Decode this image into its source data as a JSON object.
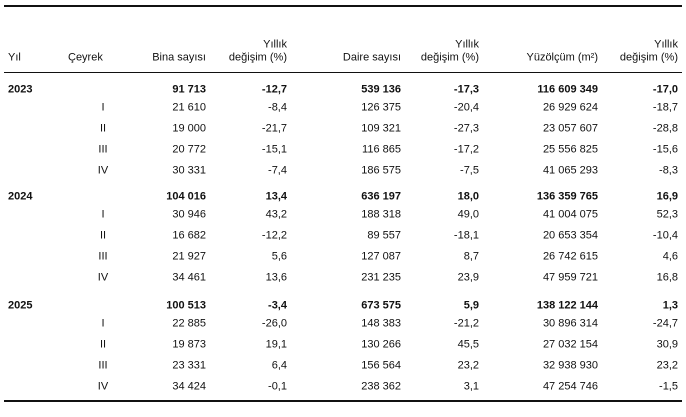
{
  "header": [
    [
      "Yıl"
    ],
    [
      "Çeyrek"
    ],
    [
      "Bina sayısı"
    ],
    [
      "Yıllık",
      "değişim (%)"
    ],
    [
      "Daire sayısı"
    ],
    [
      "Yıllık",
      "değişim (%)"
    ],
    [
      "Yüzölçüm (m²)"
    ],
    [
      "Yıllık",
      "değişim (%)"
    ]
  ],
  "groups": [
    {
      "year": "2023",
      "total": [
        "91 713",
        "-12,7",
        "539 136",
        "-17,3",
        "116 609 349",
        "-17,0"
      ],
      "quarters": [
        {
          "label": "I",
          "values": [
            "21 610",
            "-8,4",
            "126 375",
            "-20,4",
            "26 929 624",
            "-18,7"
          ]
        },
        {
          "label": "II",
          "values": [
            "19 000",
            "-21,7",
            "109 321",
            "-27,3",
            "23 057 607",
            "-28,8"
          ]
        },
        {
          "label": "III",
          "values": [
            "20 772",
            "-15,1",
            "116 865",
            "-17,2",
            "25 556 825",
            "-15,6"
          ]
        },
        {
          "label": "IV",
          "values": [
            "30 331",
            "-7,4",
            "186 575",
            "-7,5",
            "41 065 293",
            "-8,3"
          ]
        }
      ]
    },
    {
      "year": "2024",
      "total": [
        "104 016",
        "13,4",
        "636 197",
        "18,0",
        "136 359 765",
        "16,9"
      ],
      "quarters": [
        {
          "label": "I",
          "values": [
            "30 946",
            "43,2",
            "188 318",
            "49,0",
            "41 004 075",
            "52,3"
          ]
        },
        {
          "label": "II",
          "values": [
            "16 682",
            "-12,2",
            "89 557",
            "-18,1",
            "20 653 354",
            "-10,4"
          ]
        },
        {
          "label": "III",
          "values": [
            "21 927",
            "5,6",
            "127 087",
            "8,7",
            "26 742 615",
            "4,6"
          ]
        },
        {
          "label": "IV",
          "values": [
            "34 461",
            "13,6",
            "231 235",
            "23,9",
            "47 959 721",
            "16,8"
          ]
        }
      ]
    },
    {
      "year": "2025",
      "total": [
        "100 513",
        "-3,4",
        "673 575",
        "5,9",
        "138 122 144",
        "1,3"
      ],
      "quarters": [
        {
          "label": "I",
          "values": [
            "22 885",
            "-26,0",
            "148 383",
            "-21,2",
            "30 896 314",
            "-24,7"
          ]
        },
        {
          "label": "II",
          "values": [
            "19 873",
            "19,1",
            "130 266",
            "45,5",
            "27 032 154",
            "30,9"
          ]
        },
        {
          "label": "III",
          "values": [
            "23 331",
            "6,4",
            "156 564",
            "23,2",
            "32 938 930",
            "23,2"
          ]
        },
        {
          "label": "IV",
          "values": [
            "34 424",
            "-0,1",
            "238 362",
            "3,1",
            "47 254 746",
            "-1,5"
          ]
        }
      ]
    }
  ]
}
